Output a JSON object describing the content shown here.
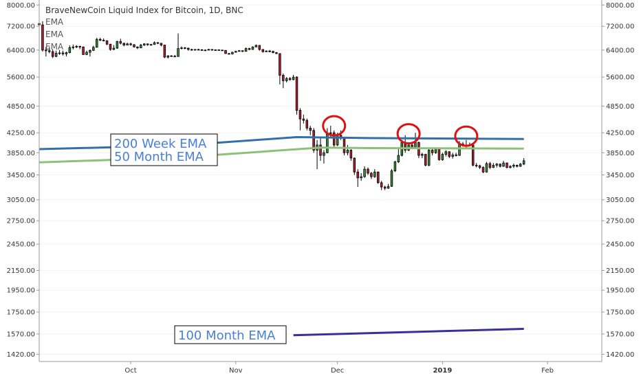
{
  "chart_data": {
    "type": "candlestick",
    "title": "BraveNewCoin Liquid Index for Bitcoin, 1D, BNC",
    "legend": [
      "EMA",
      "EMA",
      "EMA"
    ],
    "y_ticks": [
      "8000.00",
      "7200.00",
      "6400.00",
      "5600.00",
      "4850.00",
      "4250.00",
      "3850.00",
      "3450.00",
      "3050.00",
      "2750.00",
      "2450.00",
      "2150.00",
      "1950.00",
      "1750.00",
      "1570.00",
      "1420.00"
    ],
    "y_scale": "log",
    "ylim": [
      1370,
      8200
    ],
    "x_ticks": [
      {
        "label": "Oct",
        "date": "2018-10-01",
        "bold": false
      },
      {
        "label": "Nov",
        "date": "2018-11-01",
        "bold": false
      },
      {
        "label": "Dec",
        "date": "2018-12-01",
        "bold": false
      },
      {
        "label": "2019",
        "date": "2019-01-01",
        "bold": true
      },
      {
        "label": "Feb",
        "date": "2019-02-01",
        "bold": false
      }
    ],
    "xlim": [
      "2018-09-04",
      "2019-02-17"
    ],
    "candles": [
      {
        "d": "2018-09-04",
        "o": 7300,
        "h": 7420,
        "l": 7180,
        "c": 7250
      },
      {
        "d": "2018-09-05",
        "o": 7250,
        "h": 7380,
        "l": 6350,
        "c": 6400
      },
      {
        "d": "2018-09-06",
        "o": 6400,
        "h": 6500,
        "l": 6200,
        "c": 6380
      },
      {
        "d": "2018-09-07",
        "o": 6380,
        "h": 6500,
        "l": 6300,
        "c": 6350
      },
      {
        "d": "2018-09-08",
        "o": 6350,
        "h": 6420,
        "l": 6150,
        "c": 6200
      },
      {
        "d": "2018-09-09",
        "o": 6200,
        "h": 6380,
        "l": 6180,
        "c": 6300
      },
      {
        "d": "2018-09-10",
        "o": 6300,
        "h": 6400,
        "l": 6250,
        "c": 6310
      },
      {
        "d": "2018-09-11",
        "o": 6310,
        "h": 6380,
        "l": 6230,
        "c": 6280
      },
      {
        "d": "2018-09-12",
        "o": 6280,
        "h": 6350,
        "l": 6200,
        "c": 6320
      },
      {
        "d": "2018-09-13",
        "o": 6320,
        "h": 6550,
        "l": 6300,
        "c": 6480
      },
      {
        "d": "2018-09-14",
        "o": 6480,
        "h": 6580,
        "l": 6420,
        "c": 6500
      },
      {
        "d": "2018-09-15",
        "o": 6500,
        "h": 6560,
        "l": 6460,
        "c": 6520
      },
      {
        "d": "2018-09-16",
        "o": 6520,
        "h": 6540,
        "l": 6430,
        "c": 6500
      },
      {
        "d": "2018-09-17",
        "o": 6500,
        "h": 6520,
        "l": 6250,
        "c": 6260
      },
      {
        "d": "2018-09-18",
        "o": 6260,
        "h": 6380,
        "l": 6240,
        "c": 6330
      },
      {
        "d": "2018-09-19",
        "o": 6330,
        "h": 6420,
        "l": 6200,
        "c": 6390
      },
      {
        "d": "2018-09-20",
        "o": 6390,
        "h": 6540,
        "l": 6370,
        "c": 6490
      },
      {
        "d": "2018-09-21",
        "o": 6490,
        "h": 6800,
        "l": 6480,
        "c": 6750
      },
      {
        "d": "2018-09-22",
        "o": 6750,
        "h": 6800,
        "l": 6690,
        "c": 6720
      },
      {
        "d": "2018-09-23",
        "o": 6720,
        "h": 6780,
        "l": 6680,
        "c": 6700
      },
      {
        "d": "2018-09-24",
        "o": 6700,
        "h": 6720,
        "l": 6560,
        "c": 6590
      },
      {
        "d": "2018-09-25",
        "o": 6590,
        "h": 6600,
        "l": 6380,
        "c": 6420
      },
      {
        "d": "2018-09-26",
        "o": 6420,
        "h": 6560,
        "l": 6400,
        "c": 6460
      },
      {
        "d": "2018-09-27",
        "o": 6460,
        "h": 6700,
        "l": 6440,
        "c": 6680
      },
      {
        "d": "2018-09-28",
        "o": 6680,
        "h": 6770,
        "l": 6580,
        "c": 6620
      },
      {
        "d": "2018-09-29",
        "o": 6620,
        "h": 6640,
        "l": 6520,
        "c": 6560
      },
      {
        "d": "2018-09-30",
        "o": 6560,
        "h": 6640,
        "l": 6550,
        "c": 6600
      },
      {
        "d": "2018-10-01",
        "o": 6600,
        "h": 6640,
        "l": 6540,
        "c": 6570
      },
      {
        "d": "2018-10-02",
        "o": 6570,
        "h": 6600,
        "l": 6480,
        "c": 6500
      },
      {
        "d": "2018-10-03",
        "o": 6500,
        "h": 6520,
        "l": 6430,
        "c": 6470
      },
      {
        "d": "2018-10-04",
        "o": 6470,
        "h": 6600,
        "l": 6460,
        "c": 6560
      },
      {
        "d": "2018-10-05",
        "o": 6560,
        "h": 6620,
        "l": 6530,
        "c": 6600
      },
      {
        "d": "2018-10-06",
        "o": 6600,
        "h": 6610,
        "l": 6540,
        "c": 6570
      },
      {
        "d": "2018-10-07",
        "o": 6570,
        "h": 6600,
        "l": 6540,
        "c": 6580
      },
      {
        "d": "2018-10-08",
        "o": 6580,
        "h": 6680,
        "l": 6570,
        "c": 6640
      },
      {
        "d": "2018-10-09",
        "o": 6640,
        "h": 6660,
        "l": 6590,
        "c": 6620
      },
      {
        "d": "2018-10-10",
        "o": 6620,
        "h": 6630,
        "l": 6520,
        "c": 6560
      },
      {
        "d": "2018-10-11",
        "o": 6560,
        "h": 6570,
        "l": 6150,
        "c": 6180
      },
      {
        "d": "2018-10-12",
        "o": 6180,
        "h": 6240,
        "l": 6140,
        "c": 6220
      },
      {
        "d": "2018-10-13",
        "o": 6220,
        "h": 6240,
        "l": 6190,
        "c": 6210
      },
      {
        "d": "2018-10-14",
        "o": 6210,
        "h": 6250,
        "l": 6180,
        "c": 6200
      },
      {
        "d": "2018-10-15",
        "o": 6200,
        "h": 6950,
        "l": 6190,
        "c": 6450
      },
      {
        "d": "2018-10-16",
        "o": 6450,
        "h": 6520,
        "l": 6420,
        "c": 6470
      },
      {
        "d": "2018-10-17",
        "o": 6470,
        "h": 6500,
        "l": 6430,
        "c": 6460
      },
      {
        "d": "2018-10-18",
        "o": 6460,
        "h": 6480,
        "l": 6380,
        "c": 6420
      },
      {
        "d": "2018-10-19",
        "o": 6420,
        "h": 6440,
        "l": 6380,
        "c": 6410
      },
      {
        "d": "2018-10-20",
        "o": 6410,
        "h": 6430,
        "l": 6390,
        "c": 6420
      },
      {
        "d": "2018-10-21",
        "o": 6420,
        "h": 6440,
        "l": 6400,
        "c": 6410
      },
      {
        "d": "2018-10-22",
        "o": 6410,
        "h": 6430,
        "l": 6390,
        "c": 6400
      },
      {
        "d": "2018-10-23",
        "o": 6400,
        "h": 6420,
        "l": 6380,
        "c": 6400
      },
      {
        "d": "2018-10-24",
        "o": 6400,
        "h": 6440,
        "l": 6390,
        "c": 6420
      },
      {
        "d": "2018-10-25",
        "o": 6420,
        "h": 6430,
        "l": 6380,
        "c": 6400
      },
      {
        "d": "2018-10-26",
        "o": 6400,
        "h": 6420,
        "l": 6380,
        "c": 6410
      },
      {
        "d": "2018-10-27",
        "o": 6410,
        "h": 6420,
        "l": 6390,
        "c": 6400
      },
      {
        "d": "2018-10-28",
        "o": 6400,
        "h": 6410,
        "l": 6380,
        "c": 6390
      },
      {
        "d": "2018-10-29",
        "o": 6390,
        "h": 6400,
        "l": 6280,
        "c": 6290
      },
      {
        "d": "2018-10-30",
        "o": 6290,
        "h": 6310,
        "l": 6270,
        "c": 6280
      },
      {
        "d": "2018-10-31",
        "o": 6280,
        "h": 6350,
        "l": 6260,
        "c": 6330
      },
      {
        "d": "2018-11-01",
        "o": 6330,
        "h": 6380,
        "l": 6320,
        "c": 6360
      },
      {
        "d": "2018-11-02",
        "o": 6360,
        "h": 6400,
        "l": 6350,
        "c": 6380
      },
      {
        "d": "2018-11-03",
        "o": 6380,
        "h": 6390,
        "l": 6340,
        "c": 6360
      },
      {
        "d": "2018-11-04",
        "o": 6360,
        "h": 6480,
        "l": 6350,
        "c": 6450
      },
      {
        "d": "2018-11-05",
        "o": 6450,
        "h": 6470,
        "l": 6400,
        "c": 6420
      },
      {
        "d": "2018-11-06",
        "o": 6420,
        "h": 6520,
        "l": 6410,
        "c": 6500
      },
      {
        "d": "2018-11-07",
        "o": 6500,
        "h": 6580,
        "l": 6490,
        "c": 6550
      },
      {
        "d": "2018-11-08",
        "o": 6550,
        "h": 6560,
        "l": 6380,
        "c": 6420
      },
      {
        "d": "2018-11-09",
        "o": 6420,
        "h": 6430,
        "l": 6320,
        "c": 6350
      },
      {
        "d": "2018-11-10",
        "o": 6350,
        "h": 6390,
        "l": 6340,
        "c": 6370
      },
      {
        "d": "2018-11-11",
        "o": 6370,
        "h": 6400,
        "l": 6330,
        "c": 6360
      },
      {
        "d": "2018-11-12",
        "o": 6360,
        "h": 6380,
        "l": 6300,
        "c": 6320
      },
      {
        "d": "2018-11-13",
        "o": 6320,
        "h": 6340,
        "l": 6270,
        "c": 6290
      },
      {
        "d": "2018-11-14",
        "o": 6290,
        "h": 6300,
        "l": 5400,
        "c": 5650
      },
      {
        "d": "2018-11-15",
        "o": 5650,
        "h": 5700,
        "l": 5300,
        "c": 5500
      },
      {
        "d": "2018-11-16",
        "o": 5500,
        "h": 5600,
        "l": 5450,
        "c": 5560
      },
      {
        "d": "2018-11-17",
        "o": 5560,
        "h": 5600,
        "l": 5500,
        "c": 5530
      },
      {
        "d": "2018-11-18",
        "o": 5530,
        "h": 5660,
        "l": 5510,
        "c": 5600
      },
      {
        "d": "2018-11-19",
        "o": 5600,
        "h": 5620,
        "l": 4650,
        "c": 4750
      },
      {
        "d": "2018-11-20",
        "o": 4750,
        "h": 4800,
        "l": 4300,
        "c": 4550
      },
      {
        "d": "2018-11-21",
        "o": 4550,
        "h": 4650,
        "l": 4450,
        "c": 4520
      },
      {
        "d": "2018-11-22",
        "o": 4520,
        "h": 4560,
        "l": 4300,
        "c": 4350
      },
      {
        "d": "2018-11-23",
        "o": 4350,
        "h": 4400,
        "l": 4200,
        "c": 4300
      },
      {
        "d": "2018-11-24",
        "o": 4300,
        "h": 4350,
        "l": 3850,
        "c": 3900
      },
      {
        "d": "2018-11-25",
        "o": 3900,
        "h": 4100,
        "l": 3550,
        "c": 4000
      },
      {
        "d": "2018-11-26",
        "o": 4000,
        "h": 4150,
        "l": 3700,
        "c": 3800
      },
      {
        "d": "2018-11-27",
        "o": 3800,
        "h": 3900,
        "l": 3650,
        "c": 3850
      },
      {
        "d": "2018-11-28",
        "o": 3850,
        "h": 4350,
        "l": 3840,
        "c": 4250
      },
      {
        "d": "2018-11-29",
        "o": 4250,
        "h": 4400,
        "l": 4150,
        "c": 4250
      },
      {
        "d": "2018-11-30",
        "o": 4250,
        "h": 4300,
        "l": 3950,
        "c": 4000
      },
      {
        "d": "2018-12-01",
        "o": 4000,
        "h": 4250,
        "l": 3980,
        "c": 4200
      },
      {
        "d": "2018-12-02",
        "o": 4200,
        "h": 4300,
        "l": 4100,
        "c": 4150
      },
      {
        "d": "2018-12-03",
        "o": 4150,
        "h": 4160,
        "l": 3800,
        "c": 3850
      },
      {
        "d": "2018-12-04",
        "o": 3850,
        "h": 4000,
        "l": 3800,
        "c": 3900
      },
      {
        "d": "2018-12-05",
        "o": 3900,
        "h": 3920,
        "l": 3700,
        "c": 3750
      },
      {
        "d": "2018-12-06",
        "o": 3750,
        "h": 3760,
        "l": 3450,
        "c": 3500
      },
      {
        "d": "2018-12-07",
        "o": 3500,
        "h": 3550,
        "l": 3250,
        "c": 3400
      },
      {
        "d": "2018-12-08",
        "o": 3400,
        "h": 3480,
        "l": 3350,
        "c": 3420
      },
      {
        "d": "2018-12-09",
        "o": 3420,
        "h": 3600,
        "l": 3400,
        "c": 3550
      },
      {
        "d": "2018-12-10",
        "o": 3550,
        "h": 3580,
        "l": 3450,
        "c": 3480
      },
      {
        "d": "2018-12-11",
        "o": 3480,
        "h": 3500,
        "l": 3380,
        "c": 3420
      },
      {
        "d": "2018-12-12",
        "o": 3420,
        "h": 3550,
        "l": 3400,
        "c": 3500
      },
      {
        "d": "2018-12-13",
        "o": 3500,
        "h": 3510,
        "l": 3300,
        "c": 3320
      },
      {
        "d": "2018-12-14",
        "o": 3320,
        "h": 3350,
        "l": 3200,
        "c": 3250
      },
      {
        "d": "2018-12-15",
        "o": 3250,
        "h": 3270,
        "l": 3200,
        "c": 3230
      },
      {
        "d": "2018-12-16",
        "o": 3230,
        "h": 3300,
        "l": 3220,
        "c": 3260
      },
      {
        "d": "2018-12-17",
        "o": 3260,
        "h": 3550,
        "l": 3250,
        "c": 3520
      },
      {
        "d": "2018-12-18",
        "o": 3520,
        "h": 3700,
        "l": 3500,
        "c": 3680
      },
      {
        "d": "2018-12-19",
        "o": 3680,
        "h": 3950,
        "l": 3660,
        "c": 3800
      },
      {
        "d": "2018-12-20",
        "o": 3800,
        "h": 4100,
        "l": 3780,
        "c": 4050
      },
      {
        "d": "2018-12-21",
        "o": 4050,
        "h": 4200,
        "l": 3850,
        "c": 3900
      },
      {
        "d": "2018-12-22",
        "o": 3900,
        "h": 4050,
        "l": 3880,
        "c": 4000
      },
      {
        "d": "2018-12-23",
        "o": 4000,
        "h": 4050,
        "l": 3920,
        "c": 3950
      },
      {
        "d": "2018-12-24",
        "o": 3950,
        "h": 4250,
        "l": 3940,
        "c": 4050
      },
      {
        "d": "2018-12-25",
        "o": 4050,
        "h": 4070,
        "l": 3750,
        "c": 3800
      },
      {
        "d": "2018-12-26",
        "o": 3800,
        "h": 3850,
        "l": 3750,
        "c": 3820
      },
      {
        "d": "2018-12-27",
        "o": 3820,
        "h": 3830,
        "l": 3600,
        "c": 3620
      },
      {
        "d": "2018-12-28",
        "o": 3620,
        "h": 3950,
        "l": 3600,
        "c": 3900
      },
      {
        "d": "2018-12-29",
        "o": 3900,
        "h": 3950,
        "l": 3800,
        "c": 3850
      },
      {
        "d": "2018-12-30",
        "o": 3850,
        "h": 3950,
        "l": 3830,
        "c": 3920
      },
      {
        "d": "2018-12-31",
        "o": 3920,
        "h": 3930,
        "l": 3700,
        "c": 3720
      },
      {
        "d": "2019-01-01",
        "o": 3720,
        "h": 3850,
        "l": 3700,
        "c": 3820
      },
      {
        "d": "2019-01-02",
        "o": 3820,
        "h": 3900,
        "l": 3780,
        "c": 3870
      },
      {
        "d": "2019-01-03",
        "o": 3870,
        "h": 3880,
        "l": 3750,
        "c": 3780
      },
      {
        "d": "2019-01-04",
        "o": 3780,
        "h": 3850,
        "l": 3740,
        "c": 3810
      },
      {
        "d": "2019-01-05",
        "o": 3810,
        "h": 3850,
        "l": 3780,
        "c": 3800
      },
      {
        "d": "2019-01-06",
        "o": 3800,
        "h": 4080,
        "l": 3790,
        "c": 4020
      },
      {
        "d": "2019-01-07",
        "o": 4020,
        "h": 4060,
        "l": 3970,
        "c": 4000
      },
      {
        "d": "2019-01-08",
        "o": 4000,
        "h": 4100,
        "l": 3950,
        "c": 3990
      },
      {
        "d": "2019-01-09",
        "o": 3990,
        "h": 4050,
        "l": 3970,
        "c": 4000
      },
      {
        "d": "2019-01-10",
        "o": 4000,
        "h": 4010,
        "l": 3600,
        "c": 3620
      },
      {
        "d": "2019-01-11",
        "o": 3620,
        "h": 3660,
        "l": 3580,
        "c": 3610
      },
      {
        "d": "2019-01-12",
        "o": 3610,
        "h": 3630,
        "l": 3550,
        "c": 3580
      },
      {
        "d": "2019-01-13",
        "o": 3580,
        "h": 3600,
        "l": 3480,
        "c": 3500
      },
      {
        "d": "2019-01-14",
        "o": 3500,
        "h": 3680,
        "l": 3490,
        "c": 3650
      },
      {
        "d": "2019-01-15",
        "o": 3650,
        "h": 3680,
        "l": 3550,
        "c": 3580
      },
      {
        "d": "2019-01-16",
        "o": 3580,
        "h": 3660,
        "l": 3570,
        "c": 3620
      },
      {
        "d": "2019-01-17",
        "o": 3620,
        "h": 3660,
        "l": 3580,
        "c": 3640
      },
      {
        "d": "2019-01-18",
        "o": 3640,
        "h": 3650,
        "l": 3580,
        "c": 3600
      },
      {
        "d": "2019-01-19",
        "o": 3600,
        "h": 3700,
        "l": 3590,
        "c": 3660
      },
      {
        "d": "2019-01-20",
        "o": 3660,
        "h": 3670,
        "l": 3560,
        "c": 3580
      },
      {
        "d": "2019-01-21",
        "o": 3580,
        "h": 3620,
        "l": 3560,
        "c": 3600
      },
      {
        "d": "2019-01-22",
        "o": 3600,
        "h": 3650,
        "l": 3570,
        "c": 3620
      },
      {
        "d": "2019-01-23",
        "o": 3620,
        "h": 3630,
        "l": 3580,
        "c": 3600
      },
      {
        "d": "2019-01-24",
        "o": 3600,
        "h": 3660,
        "l": 3590,
        "c": 3640
      },
      {
        "d": "2019-01-25",
        "o": 3640,
        "h": 3750,
        "l": 3620,
        "c": 3700
      }
    ],
    "ema_lines": [
      {
        "name": "200 Week EMA",
        "color": "#336fa8",
        "points": [
          [
            "2018-09-04",
            3920
          ],
          [
            "2018-10-15",
            3990
          ],
          [
            "2018-11-19",
            4160
          ],
          [
            "2018-12-10",
            4140
          ],
          [
            "2019-01-25",
            4120
          ]
        ]
      },
      {
        "name": "50 Month EMA",
        "color": "#8cc17a",
        "points": [
          [
            "2018-09-04",
            3670
          ],
          [
            "2018-10-15",
            3760
          ],
          [
            "2018-11-26",
            3950
          ],
          [
            "2018-12-10",
            3940
          ],
          [
            "2019-01-25",
            3930
          ]
        ]
      },
      {
        "name": "100 Month EMA",
        "color": "#38309a",
        "points": [
          [
            "2018-11-18",
            1560
          ],
          [
            "2019-01-25",
            1610
          ]
        ]
      }
    ],
    "markers": [
      {
        "date": "2018-11-30",
        "value": 4400,
        "color": "#e01010"
      },
      {
        "date": "2018-12-22",
        "value": 4230,
        "color": "#e01010"
      },
      {
        "date": "2019-01-08",
        "value": 4180,
        "color": "#e01010"
      }
    ]
  },
  "annotations": {
    "ema_label_top": "200 Week EMA",
    "ema_label_bottom": "50 Month EMA",
    "ema_label_100": "100 Month EMA"
  }
}
